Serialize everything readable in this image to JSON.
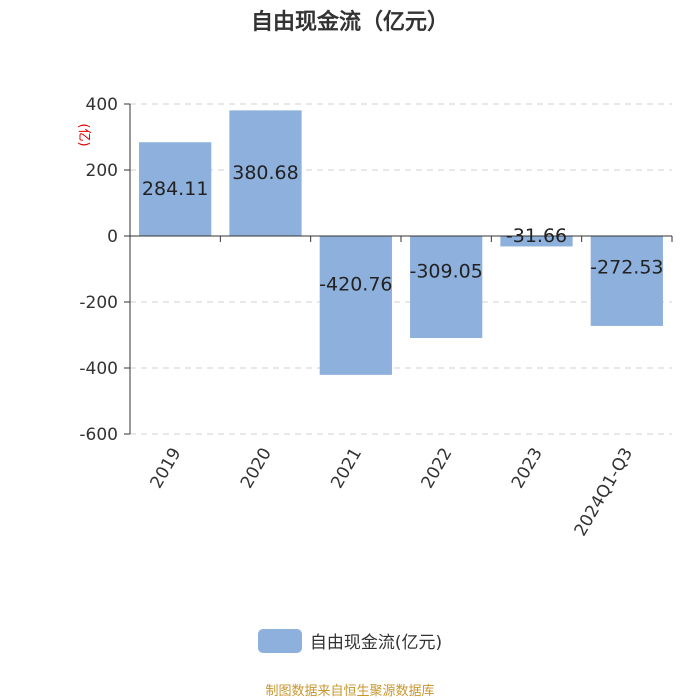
{
  "title": "自由现金流（亿元）",
  "colors": {
    "bar": "#8eb0dc",
    "unit": "#e00000",
    "grid": "#d9d9d9",
    "axis": "#333333",
    "text": "#333333",
    "source": "#c8962d"
  },
  "legend": {
    "label": "自由现金流(亿元)",
    "position": "bottom-center"
  },
  "source": "制图数据来自恒生聚源数据库",
  "chart_data": {
    "type": "bar",
    "title": "自由现金流（亿元）",
    "ylabel": "(亿)",
    "ylim": [
      -600,
      400
    ],
    "yticks": [
      400,
      200,
      0,
      -200,
      -400,
      -600
    ],
    "ytick_labels": [
      "400",
      "200",
      "0",
      "-200",
      "-400",
      "-600"
    ],
    "grid": true,
    "categories": [
      "2019",
      "2020",
      "2021",
      "2022",
      "2023",
      "2024Q1-Q3"
    ],
    "series": [
      {
        "name": "自由现金流(亿元)",
        "values": [
          284.11,
          380.68,
          -420.76,
          -309.05,
          -31.66,
          -272.53
        ],
        "labels": [
          "284.11",
          "380.68",
          "-420.76",
          "-309.05",
          "-31.66",
          "-272.53"
        ]
      }
    ]
  }
}
